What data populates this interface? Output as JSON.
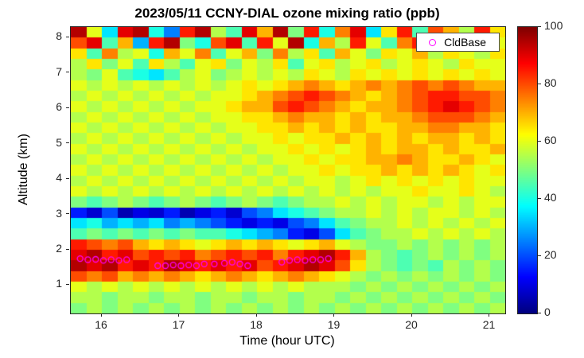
{
  "title": "2023/05/11 CCNY-DIAL ozone mixing ratio (ppb)",
  "xlabel": "Time (hour UTC)",
  "ylabel": "Altitude (km)",
  "legend": {
    "items": [
      {
        "label": "CldBase",
        "marker": "open-circle",
        "marker_color": "#ff00ff"
      }
    ]
  },
  "colors": {
    "axis": "#262626",
    "background": "#ffffff",
    "marker": "#ff00ff"
  },
  "axes": {
    "x_range": [
      15.6,
      21.2
    ],
    "y_range": [
      0.2,
      8.3
    ],
    "x_ticks": [
      16,
      17,
      18,
      19,
      20,
      21
    ],
    "y_ticks": [
      1,
      2,
      3,
      4,
      5,
      6,
      7,
      8
    ]
  },
  "colorbar": {
    "min": 0,
    "max": 100,
    "ticks": [
      0,
      20,
      40,
      60,
      80,
      100
    ],
    "colormap": "jet"
  },
  "chart_data": {
    "type": "heatmap",
    "title": "2023/05/11 CCNY-DIAL ozone mixing ratio (ppb)",
    "xlabel": "Time (hour UTC)",
    "ylabel": "Altitude (km)",
    "value_units": "ppb",
    "value_range": [
      0,
      100
    ],
    "x_hours": [
      15.7,
      15.9,
      16.1,
      16.3,
      16.5,
      16.7,
      16.9,
      17.1,
      17.3,
      17.5,
      17.7,
      17.9,
      18.1,
      18.3,
      18.5,
      18.7,
      18.9,
      19.1,
      19.3,
      19.5,
      19.7,
      19.9,
      20.1,
      20.3,
      20.5,
      20.7,
      20.9,
      21.1
    ],
    "altitudes_km": [
      8.15,
      7.85,
      7.55,
      7.25,
      6.95,
      6.65,
      6.35,
      6.05,
      5.75,
      5.45,
      5.15,
      4.85,
      4.55,
      4.25,
      3.95,
      3.65,
      3.35,
      3.05,
      2.75,
      2.45,
      2.15,
      1.85,
      1.55,
      1.25,
      0.95,
      0.65,
      0.35
    ],
    "rows_order": "top-to-bottom",
    "values_ppb": [
      [
        95,
        60,
        35,
        90,
        95,
        40,
        25,
        85,
        95,
        55,
        45,
        90,
        70,
        95,
        50,
        85,
        40,
        75,
        90,
        35,
        65,
        85,
        45,
        80,
        70,
        55,
        85,
        65
      ],
      [
        80,
        90,
        45,
        70,
        30,
        85,
        95,
        50,
        40,
        80,
        90,
        45,
        85,
        60,
        95,
        40,
        70,
        55,
        85,
        60,
        45,
        75,
        85,
        55,
        75,
        65,
        80,
        60
      ],
      [
        65,
        45,
        75,
        55,
        60,
        40,
        70,
        60,
        75,
        45,
        60,
        70,
        50,
        75,
        55,
        65,
        45,
        70,
        60,
        50,
        65,
        60,
        70,
        55,
        65,
        60,
        55,
        65
      ],
      [
        55,
        65,
        50,
        60,
        45,
        65,
        55,
        45,
        60,
        65,
        50,
        60,
        55,
        65,
        45,
        60,
        65,
        55,
        60,
        65,
        55,
        60,
        65,
        60,
        55,
        65,
        60,
        60
      ],
      [
        55,
        50,
        60,
        45,
        40,
        35,
        45,
        55,
        60,
        50,
        55,
        60,
        55,
        60,
        55,
        65,
        60,
        55,
        65,
        60,
        65,
        60,
        65,
        60,
        65,
        60,
        65,
        60
      ],
      [
        60,
        55,
        60,
        55,
        60,
        55,
        60,
        55,
        60,
        55,
        60,
        65,
        60,
        65,
        70,
        75,
        70,
        65,
        70,
        75,
        70,
        75,
        80,
        75,
        80,
        75,
        70,
        70
      ],
      [
        55,
        60,
        55,
        60,
        55,
        60,
        55,
        60,
        55,
        60,
        60,
        65,
        70,
        75,
        80,
        85,
        80,
        75,
        70,
        65,
        70,
        75,
        80,
        85,
        85,
        80,
        80,
        75
      ],
      [
        60,
        55,
        60,
        55,
        60,
        55,
        60,
        55,
        60,
        60,
        65,
        70,
        70,
        80,
        85,
        80,
        75,
        70,
        65,
        70,
        70,
        75,
        80,
        85,
        90,
        85,
        80,
        75
      ],
      [
        55,
        60,
        55,
        60,
        55,
        60,
        55,
        60,
        55,
        60,
        60,
        65,
        65,
        70,
        75,
        70,
        70,
        65,
        70,
        65,
        70,
        70,
        75,
        80,
        80,
        80,
        75,
        70
      ],
      [
        60,
        55,
        60,
        55,
        60,
        55,
        60,
        55,
        60,
        55,
        60,
        60,
        65,
        65,
        70,
        65,
        70,
        65,
        70,
        65,
        65,
        70,
        70,
        75,
        75,
        70,
        70,
        65
      ],
      [
        55,
        60,
        55,
        60,
        55,
        60,
        55,
        60,
        55,
        60,
        55,
        60,
        60,
        65,
        60,
        65,
        65,
        70,
        65,
        70,
        65,
        70,
        65,
        70,
        70,
        65,
        70,
        65
      ],
      [
        60,
        55,
        60,
        55,
        60,
        55,
        60,
        55,
        60,
        55,
        60,
        55,
        60,
        60,
        65,
        60,
        65,
        60,
        65,
        70,
        65,
        70,
        70,
        65,
        70,
        65,
        65,
        70
      ],
      [
        55,
        60,
        55,
        60,
        55,
        60,
        55,
        60,
        55,
        60,
        55,
        60,
        55,
        60,
        60,
        65,
        60,
        65,
        65,
        70,
        70,
        75,
        70,
        65,
        65,
        70,
        65,
        60
      ],
      [
        60,
        55,
        60,
        55,
        60,
        55,
        60,
        55,
        60,
        55,
        60,
        55,
        60,
        55,
        60,
        60,
        65,
        60,
        65,
        65,
        70,
        65,
        70,
        65,
        70,
        65,
        60,
        65
      ],
      [
        55,
        60,
        55,
        60,
        55,
        60,
        55,
        60,
        55,
        60,
        55,
        60,
        55,
        60,
        55,
        60,
        60,
        55,
        60,
        65,
        60,
        65,
        60,
        65,
        60,
        65,
        60,
        60
      ],
      [
        60,
        55,
        60,
        55,
        60,
        55,
        60,
        55,
        60,
        55,
        60,
        55,
        60,
        55,
        60,
        55,
        60,
        55,
        60,
        55,
        60,
        60,
        65,
        60,
        60,
        65,
        60,
        55
      ],
      [
        50,
        45,
        50,
        55,
        50,
        45,
        50,
        55,
        50,
        45,
        50,
        55,
        50,
        45,
        50,
        55,
        55,
        60,
        55,
        60,
        55,
        60,
        60,
        55,
        60,
        55,
        60,
        60
      ],
      [
        15,
        8,
        20,
        5,
        10,
        8,
        15,
        5,
        10,
        15,
        8,
        20,
        25,
        35,
        40,
        45,
        50,
        55,
        55,
        60,
        55,
        60,
        55,
        60,
        60,
        55,
        60,
        55
      ],
      [
        35,
        40,
        30,
        35,
        30,
        35,
        25,
        30,
        25,
        20,
        15,
        10,
        15,
        10,
        20,
        25,
        35,
        45,
        50,
        55,
        55,
        60,
        55,
        60,
        55,
        60,
        55,
        60
      ],
      [
        45,
        50,
        45,
        50,
        45,
        50,
        45,
        50,
        45,
        45,
        40,
        35,
        30,
        25,
        15,
        10,
        20,
        35,
        45,
        50,
        55,
        55,
        60,
        55,
        60,
        55,
        60,
        55
      ],
      [
        85,
        80,
        75,
        80,
        70,
        65,
        70,
        65,
        60,
        65,
        70,
        65,
        70,
        65,
        60,
        65,
        70,
        60,
        55,
        50,
        50,
        55,
        50,
        55,
        50,
        55,
        50,
        55
      ],
      [
        90,
        95,
        85,
        90,
        80,
        85,
        80,
        85,
        75,
        80,
        85,
        80,
        85,
        75,
        85,
        90,
        95,
        85,
        70,
        55,
        50,
        45,
        50,
        55,
        50,
        55,
        50,
        55
      ],
      [
        95,
        90,
        95,
        85,
        90,
        85,
        95,
        90,
        85,
        90,
        85,
        90,
        80,
        85,
        90,
        95,
        90,
        80,
        65,
        55,
        50,
        45,
        50,
        45,
        55,
        50,
        55,
        50
      ],
      [
        80,
        75,
        80,
        70,
        75,
        70,
        75,
        70,
        65,
        70,
        75,
        70,
        65,
        70,
        75,
        70,
        65,
        60,
        55,
        50,
        55,
        50,
        55,
        50,
        55,
        50,
        55,
        50
      ],
      [
        60,
        55,
        60,
        55,
        60,
        55,
        60,
        55,
        60,
        55,
        60,
        55,
        60,
        55,
        60,
        55,
        55,
        55,
        50,
        55,
        50,
        55,
        50,
        55,
        50,
        55,
        50,
        55
      ],
      [
        55,
        55,
        50,
        55,
        55,
        50,
        55,
        55,
        50,
        55,
        55,
        50,
        55,
        55,
        50,
        55,
        55,
        50,
        55,
        50,
        55,
        50,
        55,
        50,
        55,
        50,
        55,
        50
      ],
      [
        50,
        55,
        50,
        55,
        50,
        55,
        50,
        55,
        50,
        55,
        50,
        55,
        50,
        55,
        50,
        55,
        50,
        55,
        50,
        55,
        50,
        55,
        50,
        55,
        50,
        55,
        50,
        55
      ]
    ],
    "cloud_base_points": {
      "label": "CldBase",
      "hours": [
        15.72,
        15.82,
        15.92,
        16.02,
        16.12,
        16.22,
        16.32,
        16.72,
        16.82,
        16.92,
        17.02,
        17.12,
        17.22,
        17.32,
        17.45,
        17.58,
        17.68,
        17.78,
        17.88,
        18.32,
        18.42,
        18.52,
        18.62,
        18.72,
        18.82,
        18.92
      ],
      "altitude_km": [
        1.75,
        1.72,
        1.73,
        1.7,
        1.72,
        1.7,
        1.72,
        1.55,
        1.55,
        1.57,
        1.55,
        1.57,
        1.55,
        1.6,
        1.6,
        1.62,
        1.65,
        1.6,
        1.55,
        1.65,
        1.7,
        1.72,
        1.7,
        1.72,
        1.72,
        1.75
      ]
    }
  }
}
